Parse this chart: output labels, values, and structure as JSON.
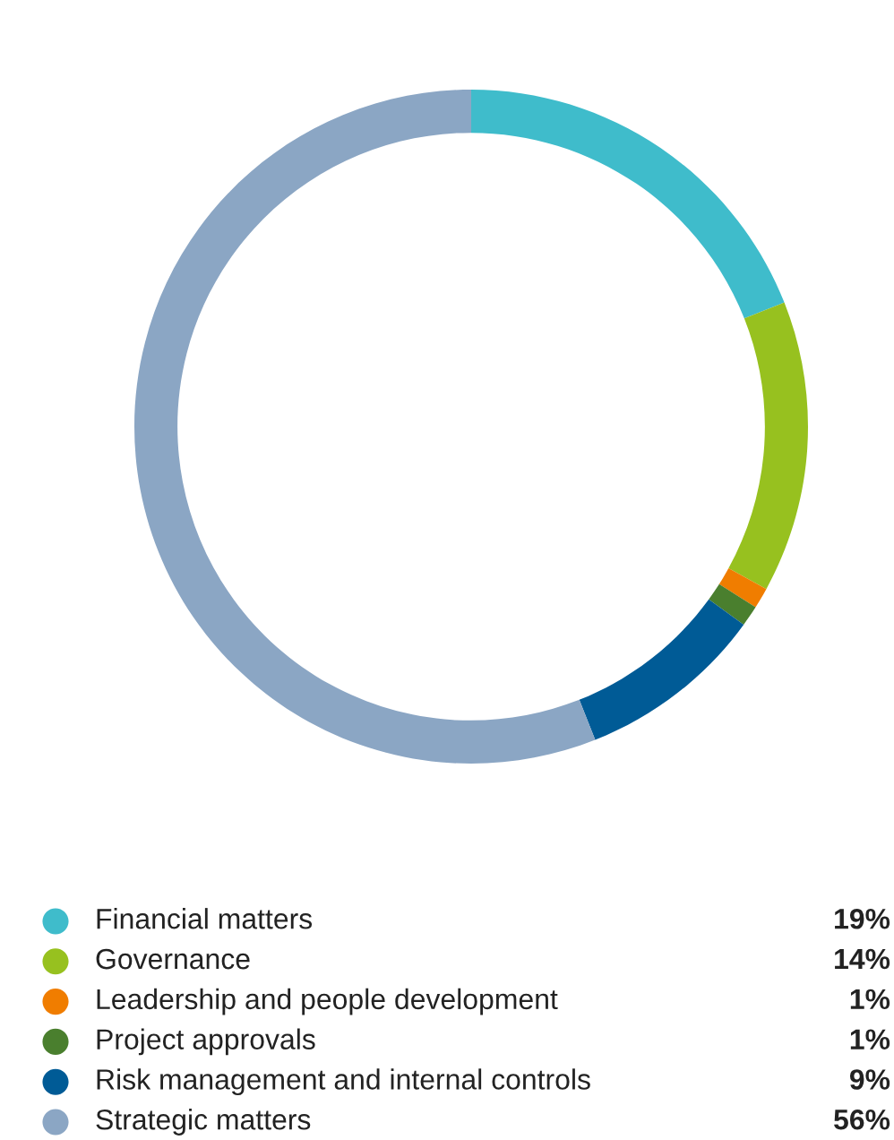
{
  "chart_data": {
    "type": "donut",
    "categories": [
      "Financial matters",
      "Governance",
      "Leadership and people development",
      "Project approvals",
      "Risk management and internal controls",
      "Strategic matters"
    ],
    "values": [
      19,
      14,
      1,
      1,
      9,
      56
    ],
    "value_labels": [
      "19%",
      "14%",
      "1%",
      "1%",
      "9%",
      "56%"
    ],
    "colors": [
      "#3fbccb",
      "#97c11f",
      "#f07d00",
      "#4a7f2e",
      "#005b96",
      "#8ba6c4"
    ],
    "legend": "bottom"
  }
}
